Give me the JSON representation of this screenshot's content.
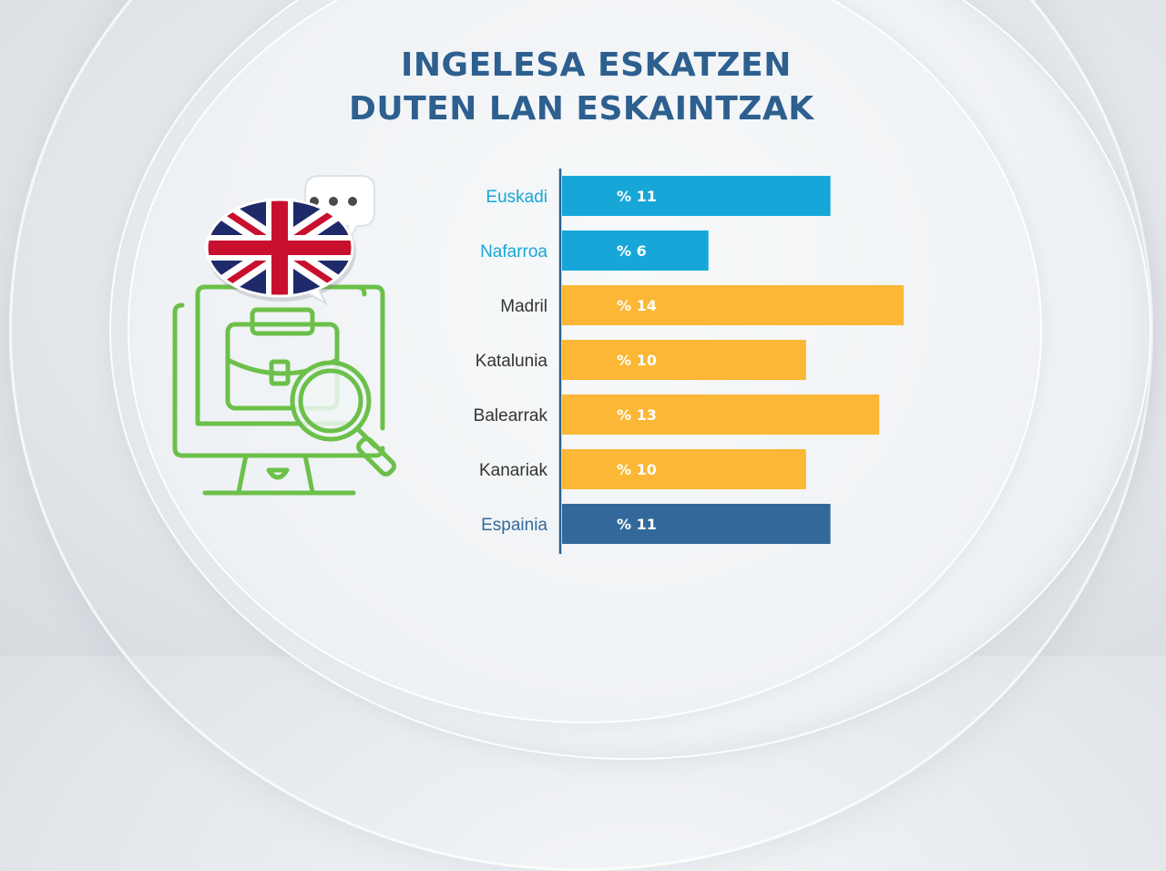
{
  "title": {
    "line1": "INGELESA ESKATZEN",
    "line2": "DUTEN LAN ESKAINTZAK"
  },
  "icons": {
    "illustration": "computer-briefcase-magnifier-icon",
    "flag": "uk-flag-speech-bubble-icon",
    "chat": "chat-bubble-dots-icon"
  },
  "colors": {
    "title": "#2d5f8f",
    "euskadi_group": "#16a7d8",
    "other_regions": "#fbb735",
    "spain": "#33699a",
    "illustration": "#6cc04a"
  },
  "chart_data": {
    "type": "bar",
    "orientation": "horizontal",
    "categories": [
      "Euskadi",
      "Nafarroa",
      "Madril",
      "Katalunia",
      "Balearrak",
      "Kanariak",
      "Espainia"
    ],
    "values": [
      11,
      6,
      14,
      10,
      13,
      10,
      11
    ],
    "value_labels": [
      "% 11",
      "% 6",
      "% 14",
      "% 10",
      "% 13",
      "% 10",
      "% 11"
    ],
    "bar_colors": [
      "#16a7d8",
      "#16a7d8",
      "#fbb735",
      "#fbb735",
      "#fbb735",
      "#fbb735",
      "#33699a"
    ],
    "label_colors": [
      "#16a7d8",
      "#16a7d8",
      "#333333",
      "#333333",
      "#333333",
      "#333333",
      "#33699a"
    ],
    "xlim": [
      0,
      14
    ],
    "grid": false,
    "legend": "none"
  }
}
